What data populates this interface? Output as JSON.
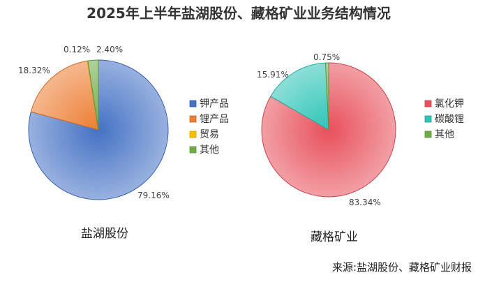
{
  "title": "2025年上半年盐湖股份、藏格矿业业务结构情况",
  "source": "来源:盐湖股份、藏格矿业财报",
  "chart_data": [
    {
      "type": "pie",
      "title": "盐湖股份",
      "categories": [
        "钾产品",
        "锂产品",
        "贸易",
        "其他"
      ],
      "values": [
        79.16,
        18.32,
        0.12,
        2.4
      ],
      "labels": [
        "79.16%",
        "18.32%",
        "0.12%",
        "2.40%"
      ],
      "colors": [
        "#4472C4",
        "#ED7D31",
        "#FFC000",
        "#70AD47"
      ]
    },
    {
      "type": "pie",
      "title": "藏格矿业",
      "categories": [
        "氯化钾",
        "碳酸锂",
        "其他"
      ],
      "values": [
        83.34,
        15.91,
        0.75
      ],
      "labels": [
        "83.34%",
        "15.91%",
        "0.75%"
      ],
      "colors": [
        "#E8505B",
        "#2EC4B6",
        "#70AD47"
      ]
    }
  ]
}
